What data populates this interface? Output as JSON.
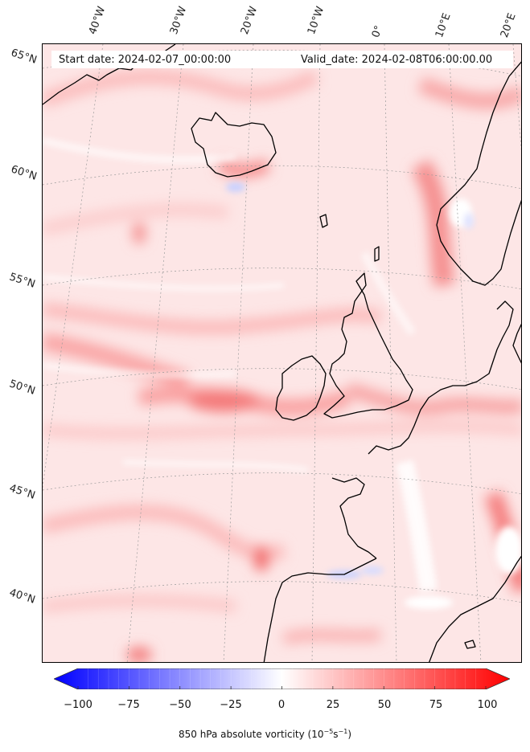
{
  "header": {
    "start_date": "Start date: 2024-02-07_00:00:00",
    "valid_date": "Valid_date: 2024-02-08T06:00:00.00"
  },
  "longitude_labels": [
    "40°W",
    "30°W",
    "20°W",
    "10°W",
    "0°",
    "10°E",
    "20°E"
  ],
  "latitude_labels": [
    "65°N",
    "60°N",
    "55°N",
    "50°N",
    "45°N",
    "40°N"
  ],
  "colorbar": {
    "ticks": [
      "−100",
      "−75",
      "−50",
      "−25",
      "0",
      "25",
      "50",
      "75",
      "100"
    ],
    "title": "850 hPa absolute vorticity (10",
    "title_sup1": "−5",
    "title_mid": "s",
    "title_sup2": "−1",
    "title_end": ")",
    "min_color": "#0000ff",
    "mid_color": "#ffffff",
    "max_color": "#ff0000"
  },
  "map": {
    "region": "North Atlantic and Western Europe",
    "projection_grid": "dotted graticule",
    "field": "850 hPa absolute vorticity",
    "background_color": "#fde7e7",
    "coastline_color": "#000000"
  }
}
